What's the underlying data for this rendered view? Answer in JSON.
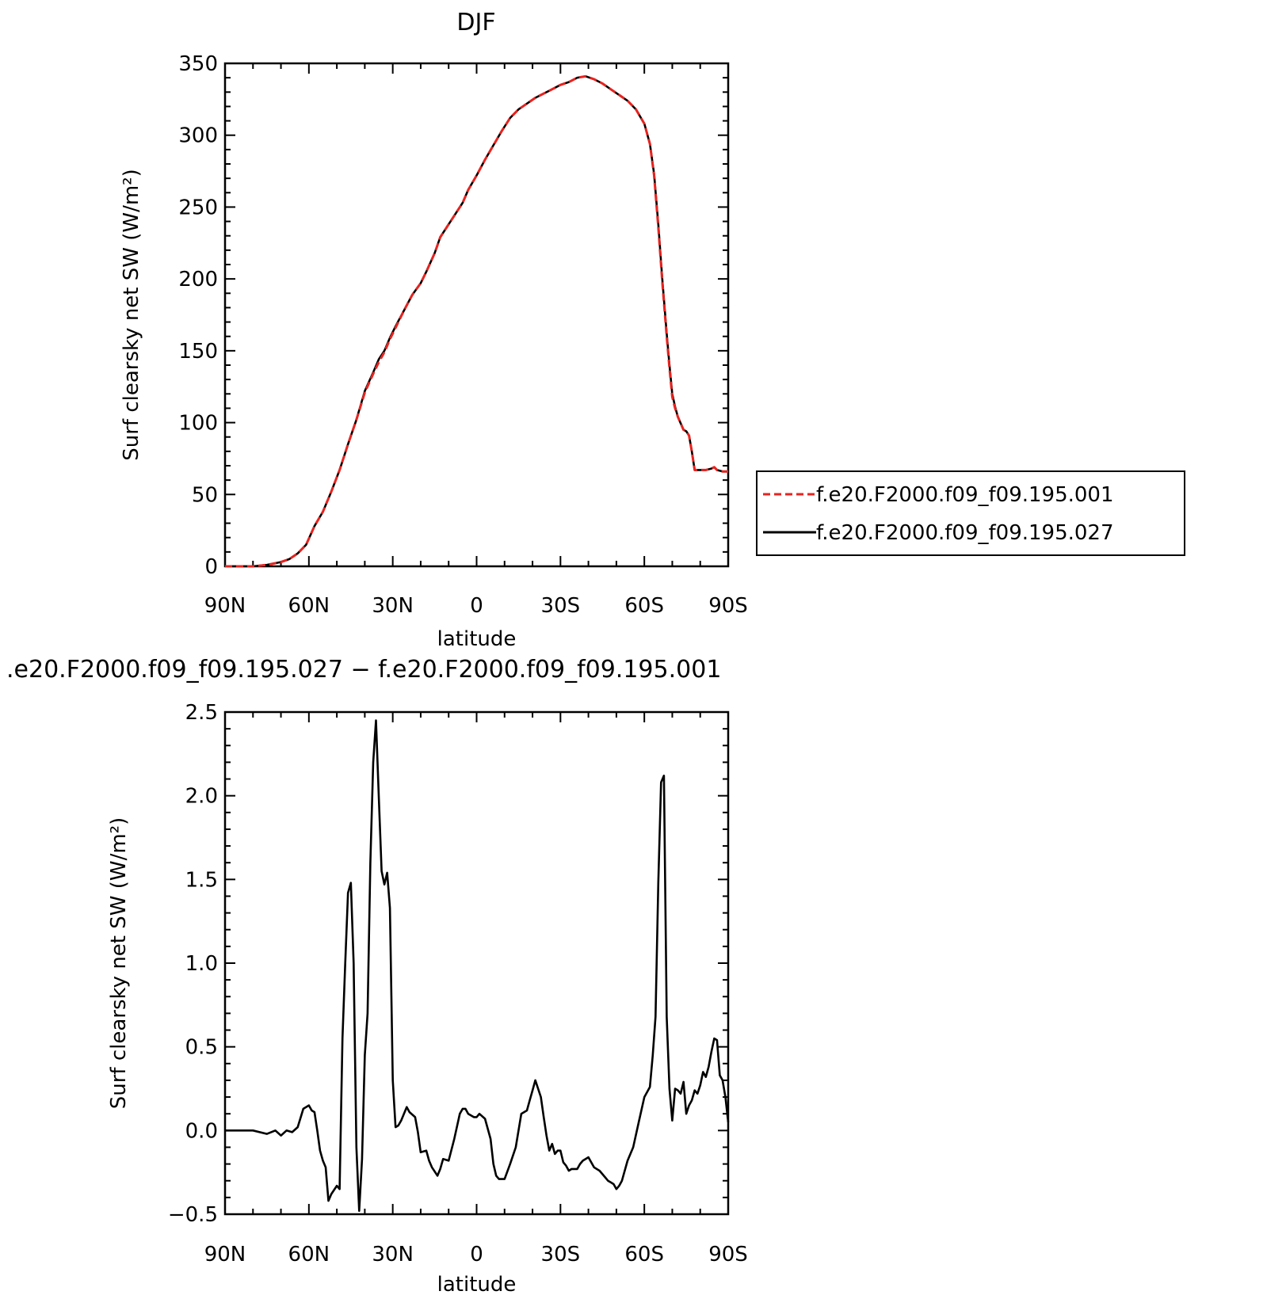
{
  "chart_data": [
    {
      "type": "line",
      "title": "DJF",
      "xlabel": "latitude",
      "ylabel": "Surf clearsky net SW (W/m²)",
      "xlim": [
        90,
        -90
      ],
      "ylim": [
        0,
        350
      ],
      "xticks": [
        {
          "value": 90,
          "label": "90N"
        },
        {
          "value": 60,
          "label": "60N"
        },
        {
          "value": 30,
          "label": "30N"
        },
        {
          "value": 0,
          "label": "0"
        },
        {
          "value": -30,
          "label": "30S"
        },
        {
          "value": -60,
          "label": "60S"
        },
        {
          "value": -90,
          "label": "90S"
        }
      ],
      "yticks": [
        {
          "value": 0,
          "label": "0"
        },
        {
          "value": 50,
          "label": "50"
        },
        {
          "value": 100,
          "label": "100"
        },
        {
          "value": 150,
          "label": "150"
        },
        {
          "value": 200,
          "label": "200"
        },
        {
          "value": 250,
          "label": "250"
        },
        {
          "value": 300,
          "label": "300"
        },
        {
          "value": 350,
          "label": "350"
        }
      ],
      "legend_position": "right",
      "series": [
        {
          "name": "f.e20.F2000.f09_f09.195.001",
          "color": "#e8231f",
          "dash": "dashed",
          "x": [
            90,
            80,
            75,
            70,
            67,
            64,
            61,
            58,
            55,
            52,
            49,
            46,
            43,
            40,
            37,
            35,
            33,
            31,
            29,
            26,
            23,
            20,
            18,
            15,
            13,
            10,
            8,
            5,
            3,
            0,
            -3,
            -6,
            -9,
            -12,
            -15,
            -18,
            -21,
            -24,
            -27,
            -30,
            -33,
            -36,
            -39,
            -42,
            -45,
            -48,
            -51,
            -54,
            -57,
            -60,
            -62,
            -63.5,
            -65,
            -66.5,
            -68,
            -69,
            -70,
            -71,
            -72,
            -74,
            -75,
            -76,
            -77,
            -78,
            -79,
            -80,
            -82,
            -84,
            -85,
            -86,
            -88,
            -90
          ],
          "values": [
            0,
            0,
            1,
            3,
            5,
            9,
            15,
            28,
            38,
            52,
            67,
            85,
            102,
            121,
            134,
            142,
            149,
            158,
            166,
            178,
            189,
            197,
            205,
            218,
            229,
            238,
            244,
            253,
            262,
            272,
            283,
            293,
            303,
            312,
            318,
            322,
            326,
            329,
            332,
            335,
            337,
            340,
            341,
            339,
            336,
            332,
            328,
            324,
            318,
            308,
            294,
            272,
            236,
            196,
            160,
            138,
            118,
            110,
            104,
            95,
            94,
            91,
            80,
            67,
            67,
            67,
            67,
            68,
            69,
            67,
            66,
            66
          ]
        },
        {
          "name": "f.e20.F2000.f09_f09.195.027",
          "color": "#000000",
          "dash": "solid",
          "x": [
            90,
            80,
            75,
            70,
            67,
            64,
            61,
            58,
            55,
            52,
            49,
            46,
            43,
            40,
            37,
            35,
            33,
            31,
            29,
            26,
            23,
            20,
            18,
            15,
            13,
            10,
            8,
            5,
            3,
            0,
            -3,
            -6,
            -9,
            -12,
            -15,
            -18,
            -21,
            -24,
            -27,
            -30,
            -33,
            -36,
            -39,
            -42,
            -45,
            -48,
            -51,
            -54,
            -57,
            -60,
            -62,
            -63.5,
            -65,
            -66.5,
            -68,
            -69,
            -70,
            -71,
            -72,
            -74,
            -75,
            -76,
            -77,
            -78,
            -79,
            -80,
            -82,
            -84,
            -85,
            -86,
            -88,
            -90
          ],
          "values": [
            0,
            0,
            1,
            3,
            5,
            9,
            15,
            28,
            38,
            52,
            67,
            85,
            102,
            122,
            135,
            144,
            150,
            159,
            167,
            178,
            189,
            197,
            205,
            218,
            229,
            238,
            244,
            253,
            262,
            272,
            283,
            293,
            303,
            312,
            318,
            322,
            326,
            329,
            332,
            335,
            337,
            340,
            341,
            339,
            336,
            332,
            328,
            324,
            318,
            308,
            294,
            273,
            238,
            198,
            162,
            140,
            120,
            111,
            104,
            95,
            94,
            91,
            80,
            67,
            67,
            67,
            67,
            68,
            69,
            67,
            66,
            66
          ]
        }
      ]
    },
    {
      "type": "line",
      "title": ".e20.F2000.f09_f09.195.027 − f.e20.F2000.f09_f09.195.001",
      "xlabel": "latitude",
      "ylabel": "Surf clearsky net SW (W/m²)",
      "xlim": [
        90,
        -90
      ],
      "ylim": [
        -0.5,
        2.5
      ],
      "xticks": [
        {
          "value": 90,
          "label": "90N"
        },
        {
          "value": 60,
          "label": "60N"
        },
        {
          "value": 30,
          "label": "30N"
        },
        {
          "value": 0,
          "label": "0"
        },
        {
          "value": -30,
          "label": "30S"
        },
        {
          "value": -60,
          "label": "60S"
        },
        {
          "value": -90,
          "label": "90S"
        }
      ],
      "yticks": [
        {
          "value": -0.5,
          "label": "−0.5"
        },
        {
          "value": 0.0,
          "label": "0.0"
        },
        {
          "value": 0.5,
          "label": "0.5"
        },
        {
          "value": 1.0,
          "label": "1.0"
        },
        {
          "value": 1.5,
          "label": "1.5"
        },
        {
          "value": 2.0,
          "label": "2.0"
        },
        {
          "value": 2.5,
          "label": "2.5"
        }
      ],
      "series": [
        {
          "color": "#000000",
          "dash": "solid",
          "x": [
            90,
            80,
            75,
            72,
            70,
            68,
            66,
            64,
            62,
            60,
            59,
            58,
            57,
            56,
            55,
            54,
            53,
            52,
            50,
            49,
            48,
            47,
            46,
            45,
            44,
            43,
            42,
            41,
            40,
            39,
            38,
            37,
            36,
            35,
            34,
            33,
            32,
            31,
            30,
            29,
            28,
            27,
            26,
            25,
            24,
            22,
            21,
            20,
            18,
            17,
            16,
            14,
            13,
            12,
            10,
            8,
            6,
            5,
            4,
            3,
            1,
            0,
            -1,
            -3,
            -5,
            -6,
            -7,
            -8,
            -10,
            -12,
            -14,
            -15,
            -16,
            -18,
            -19,
            -20,
            -21,
            -23,
            -24,
            -25,
            -26,
            -27,
            -28,
            -29,
            -30,
            -31,
            -32,
            -33,
            -34,
            -35,
            -36,
            -37,
            -38,
            -40,
            -42,
            -44,
            -46,
            -47,
            -48,
            -49,
            -50,
            -51,
            -52,
            -54,
            -56,
            -58,
            -60,
            -62,
            -63,
            -64,
            -65,
            -66,
            -67,
            -68,
            -69,
            -70,
            -71,
            -72,
            -73,
            -74,
            -75,
            -76,
            -77,
            -78,
            -79,
            -80,
            -81,
            -82,
            -83,
            -84,
            -85,
            -86,
            -87,
            -88,
            -89,
            -90
          ],
          "values": [
            0,
            0,
            -0.02,
            0.0,
            -0.03,
            0.0,
            -0.01,
            0.02,
            0.13,
            0.15,
            0.12,
            0.11,
            0.0,
            -0.12,
            -0.18,
            -0.22,
            -0.42,
            -0.38,
            -0.33,
            -0.35,
            0.55,
            1.0,
            1.42,
            1.48,
            1.0,
            -0.1,
            -0.48,
            -0.17,
            0.45,
            0.7,
            1.6,
            2.2,
            2.45,
            2.0,
            1.55,
            1.47,
            1.54,
            1.33,
            0.3,
            0.02,
            0.03,
            0.06,
            0.1,
            0.14,
            0.11,
            0.08,
            -0.01,
            -0.13,
            -0.12,
            -0.18,
            -0.22,
            -0.27,
            -0.23,
            -0.17,
            -0.18,
            -0.05,
            0.1,
            0.13,
            0.13,
            0.1,
            0.08,
            0.08,
            0.1,
            0.07,
            -0.05,
            -0.2,
            -0.27,
            -0.29,
            -0.29,
            -0.2,
            -0.1,
            0.0,
            0.1,
            0.12,
            0.18,
            0.24,
            0.3,
            0.2,
            0.08,
            -0.03,
            -0.12,
            -0.08,
            -0.14,
            -0.12,
            -0.12,
            -0.19,
            -0.21,
            -0.24,
            -0.23,
            -0.23,
            -0.23,
            -0.2,
            -0.18,
            -0.16,
            -0.22,
            -0.24,
            -0.28,
            -0.3,
            -0.31,
            -0.32,
            -0.35,
            -0.33,
            -0.3,
            -0.18,
            -0.1,
            0.05,
            0.2,
            0.26,
            0.45,
            0.68,
            1.48,
            2.08,
            2.12,
            0.68,
            0.25,
            0.06,
            0.25,
            0.24,
            0.22,
            0.29,
            0.1,
            0.15,
            0.18,
            0.24,
            0.22,
            0.27,
            0.35,
            0.32,
            0.38,
            0.47,
            0.55,
            0.54,
            0.33,
            0.3,
            0.2,
            0.05
          ]
        }
      ]
    }
  ]
}
